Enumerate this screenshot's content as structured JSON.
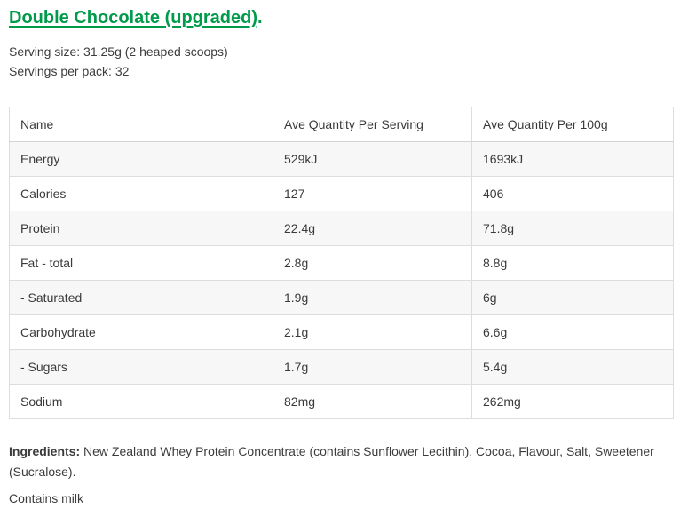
{
  "header": {
    "title": "Double Chocolate (upgraded)",
    "title_suffix": "."
  },
  "serving_info": {
    "serving_size": "Serving size: 31.25g (2 heaped scoops)",
    "servings_per_pack": "Servings per pack: 32"
  },
  "nutrition_table": {
    "headers": [
      "Name",
      "Ave Quantity Per Serving",
      "Ave Quantity Per 100g"
    ],
    "rows": [
      {
        "name": "Energy",
        "per_serving": "529kJ",
        "per_100g": "1693kJ"
      },
      {
        "name": "Calories",
        "per_serving": "127",
        "per_100g": "406"
      },
      {
        "name": "Protein",
        "per_serving": "22.4g",
        "per_100g": "71.8g"
      },
      {
        "name": "Fat - total",
        "per_serving": "2.8g",
        "per_100g": "8.8g"
      },
      {
        "name": "- Saturated",
        "per_serving": "1.9g",
        "per_100g": "6g"
      },
      {
        "name": "Carbohydrate",
        "per_serving": "2.1g",
        "per_100g": "6.6g"
      },
      {
        "name": "- Sugars",
        "per_serving": "1.7g",
        "per_100g": "5.4g"
      },
      {
        "name": "Sodium",
        "per_serving": "82mg",
        "per_100g": "262mg"
      }
    ]
  },
  "footer": {
    "ingredients_label": "Ingredients:",
    "ingredients_text": " New Zealand Whey Protein Concentrate (contains Sunflower Lecithin), Cocoa, Flavour, Salt, Sweetener (Sucralose).",
    "allergen_note": "Contains milk"
  },
  "colors": {
    "accent_green": "#009b4a",
    "row_stripe": "#f7f7f7",
    "table_border": "#dddddd",
    "body_text": "#3c3c3c"
  }
}
